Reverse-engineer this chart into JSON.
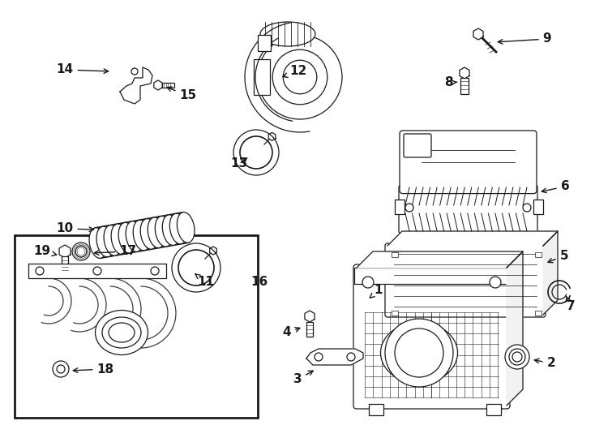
{
  "background_color": "#ffffff",
  "line_color": "#1a1a1a",
  "fig_width": 7.34,
  "fig_height": 5.4,
  "dpi": 100,
  "font_size": 11
}
